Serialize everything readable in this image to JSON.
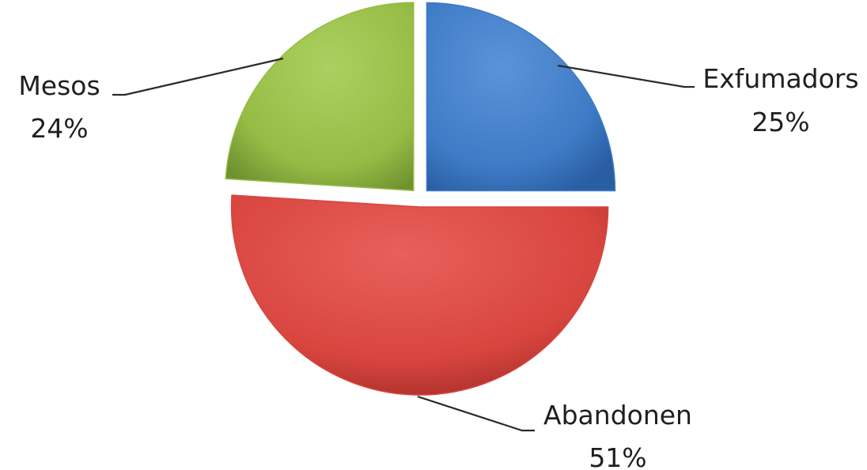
{
  "chart_data": {
    "type": "pie",
    "exploded": true,
    "slices": [
      {
        "name": "Exfumadors",
        "value": 25,
        "label": "25%",
        "color": "#3e7bc6"
      },
      {
        "name": "Abandonen",
        "value": 51,
        "label": "51%",
        "color": "#d8453f"
      },
      {
        "name": "Mesos",
        "value": 24,
        "label": "24%",
        "color": "#96bc45"
      }
    ]
  }
}
